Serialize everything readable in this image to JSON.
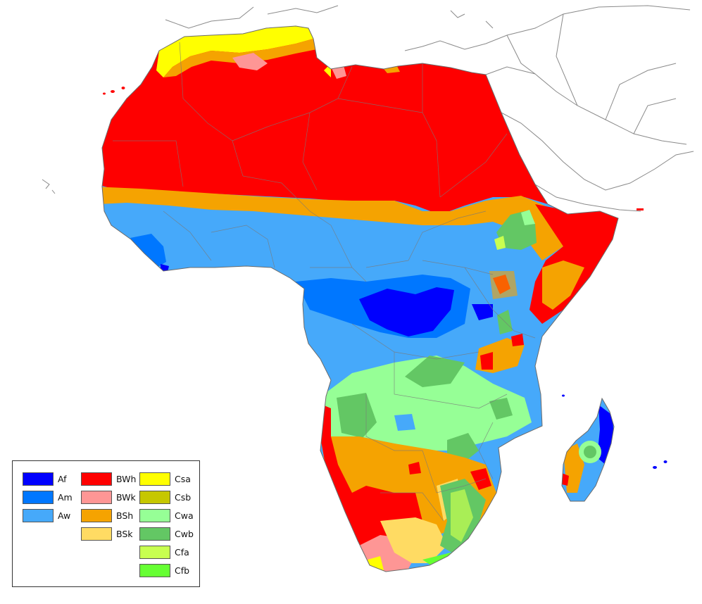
{
  "map": {
    "zones": {
      "Af": "#0000fe",
      "Am": "#0077ff",
      "Aw": "#46a9fa",
      "BWh": "#fe0000",
      "BWk": "#fe9695",
      "BSh": "#f5a301",
      "BSk": "#ffdb63",
      "Csa": "#ffff00",
      "Csb": "#c6c700",
      "Cwa": "#96ff96",
      "Cwb": "#63c764",
      "Cfa": "#c8ff50",
      "Cfb": "#66ff33"
    }
  },
  "legend": {
    "columns": [
      [
        {
          "code": "Af",
          "color": "#0000fe"
        },
        {
          "code": "Am",
          "color": "#0077ff"
        },
        {
          "code": "Aw",
          "color": "#46a9fa"
        }
      ],
      [
        {
          "code": "BWh",
          "color": "#fe0000"
        },
        {
          "code": "BWk",
          "color": "#fe9695"
        },
        {
          "code": "BSh",
          "color": "#f5a301"
        },
        {
          "code": "BSk",
          "color": "#ffdb63"
        }
      ],
      [
        {
          "code": "Csa",
          "color": "#ffff00"
        },
        {
          "code": "Csb",
          "color": "#c6c700"
        },
        {
          "code": "Cwa",
          "color": "#96ff96"
        },
        {
          "code": "Cwb",
          "color": "#63c764"
        },
        {
          "code": "Cfa",
          "color": "#c8ff50"
        },
        {
          "code": "Cfb",
          "color": "#66ff33"
        }
      ]
    ]
  }
}
